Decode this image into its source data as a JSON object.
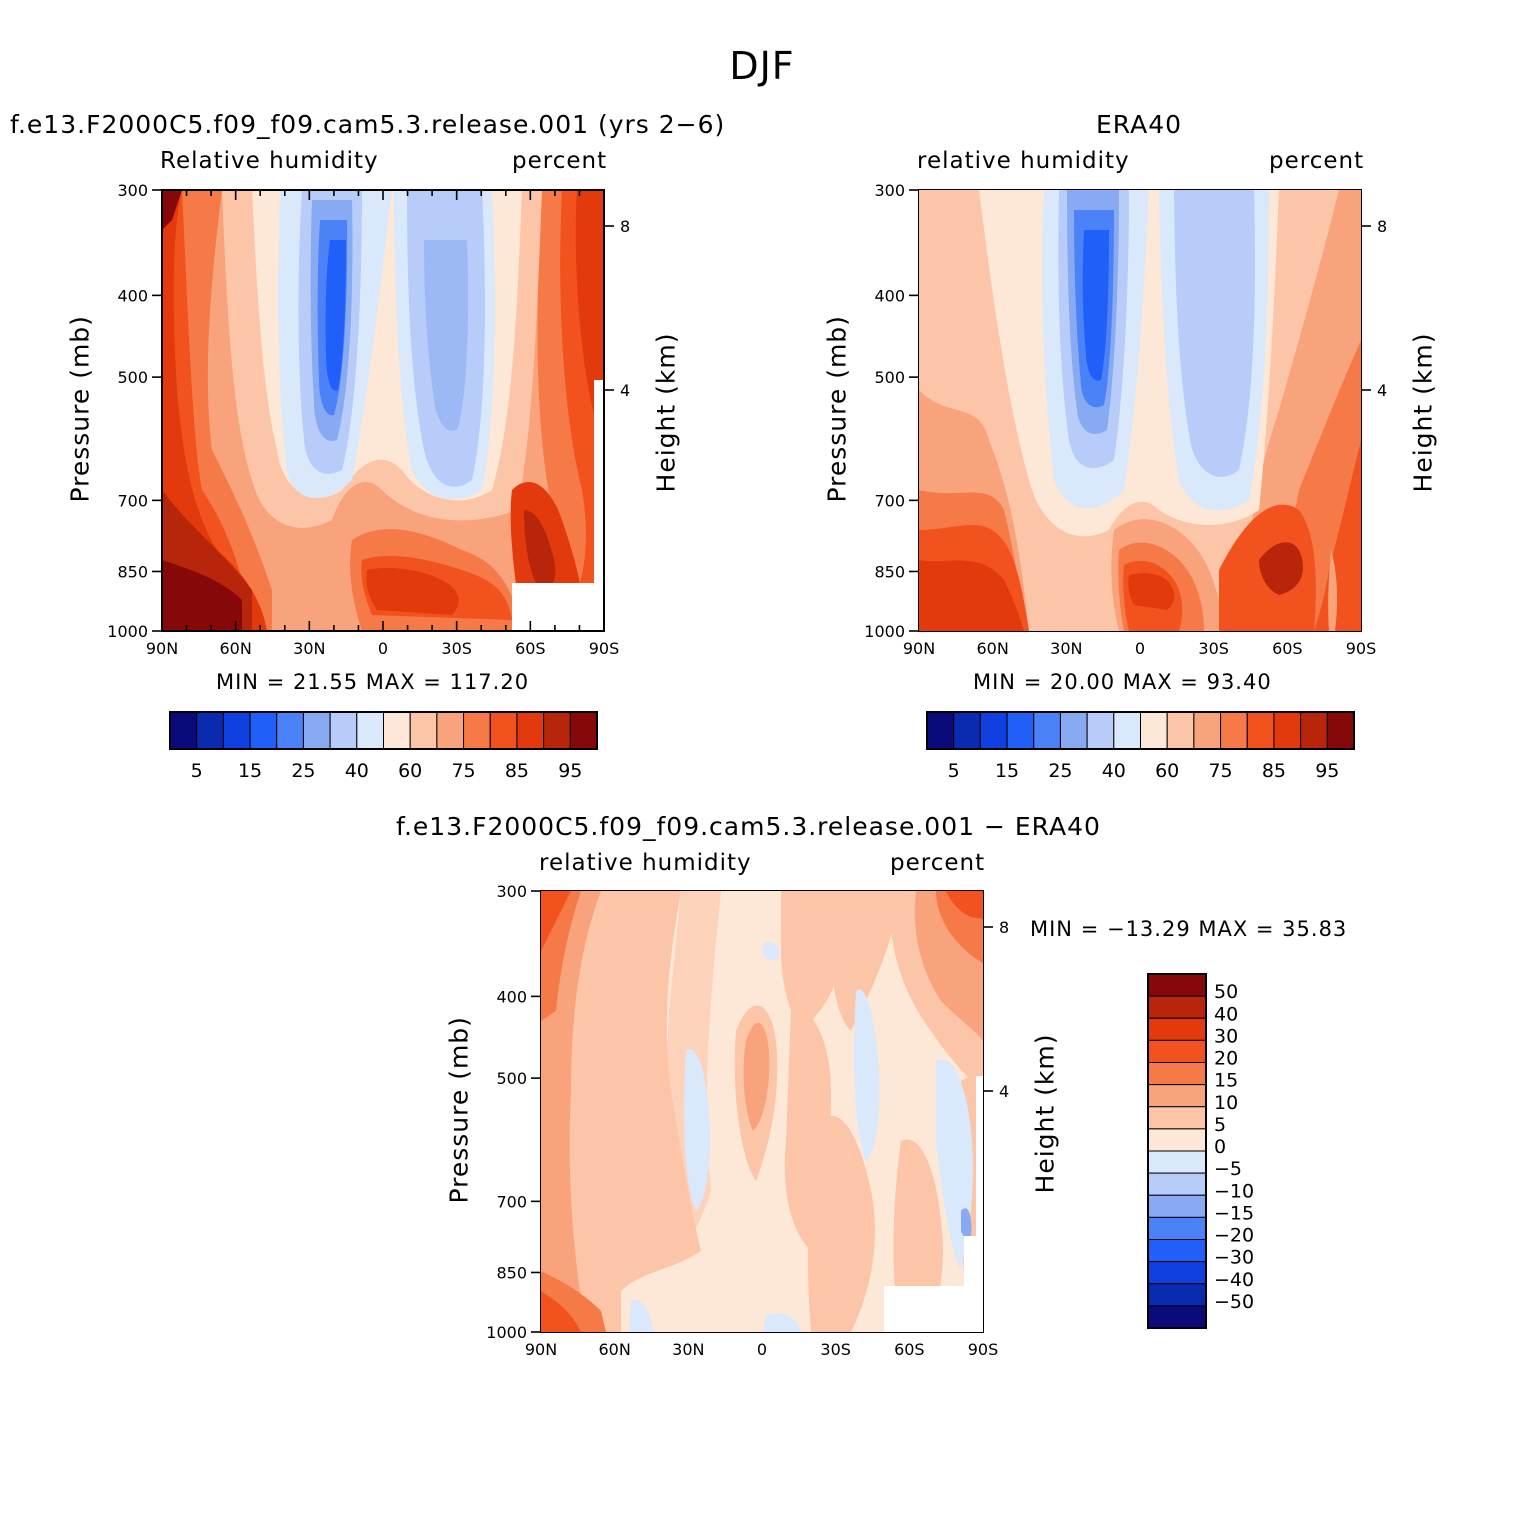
{
  "figure": {
    "title": "DJF"
  },
  "chart_data": [
    {
      "type": "heatmap",
      "title": "f.e13.F2000C5.f09_f09.cam5.3.release.001 (yrs 2−6)",
      "left_label": "Relative humidity",
      "right_label": "percent",
      "xlabel": "",
      "ylabel": "Pressure (mb)",
      "y2label": "Height (km)",
      "x_ticks": [
        "90N",
        "60N",
        "30N",
        "0",
        "30S",
        "60S",
        "90S"
      ],
      "y_ticks": [
        "300",
        "400",
        "500",
        "700",
        "850",
        "1000"
      ],
      "y2_ticks": [
        "8",
        "4"
      ],
      "xlim": [
        90,
        -90
      ],
      "ylim": [
        1000,
        300
      ],
      "y_scale": "log",
      "stats": "MIN =   21.55   MAX =  117.20",
      "colorbar": {
        "orientation": "horizontal",
        "levels": [
          5,
          10,
          15,
          20,
          25,
          30,
          40,
          50,
          60,
          70,
          75,
          80,
          85,
          90,
          95
        ],
        "tick_labels": [
          "5",
          "15",
          "25",
          "40",
          "60",
          "75",
          "85",
          "95"
        ],
        "colors": [
          "#0a0a7a",
          "#0a2ab0",
          "#1040e0",
          "#2060f8",
          "#4c82f8",
          "#88aaf2",
          "#b7ccf8",
          "#d9e8fb",
          "#fde7d6",
          "#fcc5a8",
          "#f9a37c",
          "#f57a48",
          "#f2531e",
          "#e23a0c",
          "#b7250a",
          "#870808"
        ]
      },
      "features": [
        "dry band near 20N with minimum (~25-30%) at 450-600 mb",
        "dry band near 25S (~40-50%) at 400-800 mb",
        "moist near-surface tropics and high latitudes (>85%)",
        "missing data near 60S-90S below 900 mb"
      ]
    },
    {
      "type": "heatmap",
      "title": "ERA40",
      "left_label": "relative humidity",
      "right_label": "percent",
      "xlabel": "",
      "ylabel": "Pressure (mb)",
      "y2label": "Height (km)",
      "x_ticks": [
        "90N",
        "60N",
        "30N",
        "0",
        "30S",
        "60S",
        "90S"
      ],
      "y_ticks": [
        "300",
        "400",
        "500",
        "700",
        "850",
        "1000"
      ],
      "y2_ticks": [
        "8",
        "4"
      ],
      "xlim": [
        90,
        -90
      ],
      "ylim": [
        1000,
        300
      ],
      "y_scale": "log",
      "stats": "MIN =   20.00   MAX =   93.40",
      "colorbar": {
        "orientation": "horizontal",
        "levels": [
          5,
          10,
          15,
          20,
          25,
          30,
          40,
          50,
          60,
          70,
          75,
          80,
          85,
          90,
          95
        ],
        "tick_labels": [
          "5",
          "15",
          "25",
          "40",
          "60",
          "75",
          "85",
          "95"
        ],
        "colors": [
          "#0a0a7a",
          "#0a2ab0",
          "#1040e0",
          "#2060f8",
          "#4c82f8",
          "#88aaf2",
          "#b7ccf8",
          "#d9e8fb",
          "#fde7d6",
          "#fcc5a8",
          "#f9a37c",
          "#f57a48",
          "#f2531e",
          "#e23a0c",
          "#b7250a",
          "#870808"
        ]
      },
      "features": [
        "dry band near 20N with minimum (~20-25%) at 350-650 mb",
        "dry band near 30S (~40-50%) at 300-750 mb",
        "moist near-surface layer (75-90%)"
      ]
    },
    {
      "type": "heatmap",
      "title": "f.e13.F2000C5.f09_f09.cam5.3.release.001 − ERA40",
      "left_label": "relative humidity",
      "right_label": "percent",
      "xlabel": "",
      "ylabel": "Pressure (mb)",
      "y2label": "Height (km)",
      "x_ticks": [
        "90N",
        "60N",
        "30N",
        "0",
        "30S",
        "60S",
        "90S"
      ],
      "y_ticks": [
        "300",
        "400",
        "500",
        "700",
        "850",
        "1000"
      ],
      "y2_ticks": [
        "8",
        "4"
      ],
      "xlim": [
        90,
        -90
      ],
      "ylim": [
        1000,
        300
      ],
      "y_scale": "log",
      "stats": "MIN = −13.29   MAX =   35.83",
      "colorbar": {
        "orientation": "vertical",
        "levels": [
          -50,
          -40,
          -30,
          -20,
          -15,
          -10,
          -5,
          0,
          5,
          10,
          15,
          20,
          30,
          40,
          50
        ],
        "tick_labels": [
          "50",
          "40",
          "30",
          "20",
          "15",
          "10",
          "5",
          "0",
          "−5",
          "−10",
          "−15",
          "−20",
          "−30",
          "−40",
          "−50"
        ],
        "colors": [
          "#870808",
          "#b7250a",
          "#e23a0c",
          "#f2531e",
          "#f57a48",
          "#f9a37c",
          "#fcc5a8",
          "#fde7d6",
          "#d9e8fb",
          "#b7ccf8",
          "#88aaf2",
          "#4c82f8",
          "#2060f8",
          "#1040e0",
          "#0a2ab0",
          "#0a0a7a"
        ]
      },
      "features": [
        "mostly positive bias 0-10%",
        "larger positive bias (15-30%) near 90N at 300-400 mb and near surface",
        "positive bias (10-20%) near 60S-90S upper levels",
        "small negative bias (0 to -5%) near 25N mid-levels, 30S mid-levels and near 80S",
        "missing data near 60S-90S below 900 mb"
      ]
    }
  ]
}
